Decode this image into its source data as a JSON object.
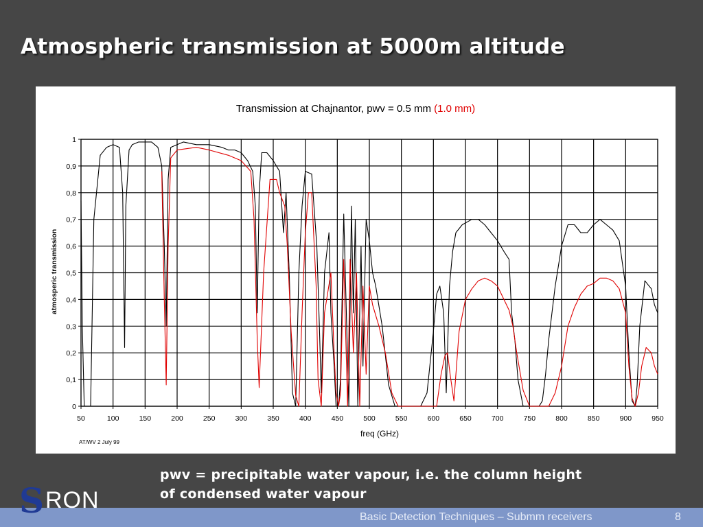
{
  "slide": {
    "title": "Atmospheric transmission at 5000m altitude",
    "caption_line1": "pwv = precipitable water vapour, i.e. the column height",
    "caption_line2": "of condensed water vapour",
    "footer_text": "Basic Detection Techniques – Submm receivers",
    "page_number": "8",
    "logo_text": "RON",
    "logo_letter": "S"
  },
  "chart_data": {
    "type": "line",
    "title": "Transmission at Chajnantor, pwv = 0.5 mm",
    "title_red": "(1.0 mm)",
    "xlabel": "freq (GHz)",
    "ylabel": "atmosperic transmission",
    "note": "AT/WV 2 July 99",
    "xlim": [
      50,
      950
    ],
    "ylim": [
      0,
      1
    ],
    "x_ticks": [
      50,
      100,
      150,
      200,
      250,
      300,
      350,
      400,
      450,
      500,
      550,
      600,
      650,
      700,
      750,
      800,
      850,
      900,
      950
    ],
    "y_ticks": [
      "0",
      "0,1",
      "0,2",
      "0,3",
      "0,4",
      "0,5",
      "0,6",
      "0,7",
      "0,8",
      "0,9",
      "1"
    ],
    "grid": true,
    "legend": "none",
    "colors": {
      "pwv_0_5": "#000000",
      "pwv_1_0": "#e00000"
    },
    "series": [
      {
        "color": "black",
        "x": [
          50,
          52,
          55,
          60,
          65,
          70,
          80,
          90,
          100,
          110,
          115,
          118,
          120,
          125,
          130,
          140,
          150,
          160,
          170,
          176,
          180,
          183,
          186,
          190,
          200,
          210,
          230,
          250,
          270,
          280,
          290,
          300,
          310,
          318,
          322,
          325,
          328,
          332,
          340,
          350,
          360,
          366,
          370,
          375,
          380,
          385,
          390,
          395,
          400,
          410,
          418,
          422,
          425,
          430,
          437,
          440,
          445,
          448,
          452,
          455,
          460,
          468,
          472,
          475,
          478,
          482,
          487,
          490,
          495,
          500,
          505,
          510,
          520,
          530,
          540,
          550,
          560,
          570,
          580,
          590,
          600,
          605,
          610,
          616,
          620,
          625,
          630,
          635,
          645,
          660,
          670,
          680,
          690,
          700,
          710,
          718,
          722,
          727,
          732,
          740,
          745,
          752,
          760,
          765,
          770,
          775,
          780,
          790,
          800,
          810,
          820,
          830,
          840,
          850,
          860,
          870,
          880,
          890,
          900,
          905,
          910,
          915,
          918,
          922,
          930,
          940,
          945,
          950
        ],
        "y": [
          0.77,
          0.3,
          0.0,
          0.0,
          0.0,
          0.7,
          0.94,
          0.97,
          0.98,
          0.97,
          0.8,
          0.22,
          0.75,
          0.96,
          0.98,
          0.99,
          0.99,
          0.99,
          0.97,
          0.9,
          0.6,
          0.3,
          0.85,
          0.97,
          0.98,
          0.99,
          0.98,
          0.98,
          0.97,
          0.96,
          0.96,
          0.95,
          0.92,
          0.88,
          0.75,
          0.35,
          0.8,
          0.95,
          0.95,
          0.92,
          0.88,
          0.65,
          0.8,
          0.5,
          0.05,
          0.0,
          0.5,
          0.75,
          0.88,
          0.87,
          0.6,
          0.3,
          0.05,
          0.5,
          0.65,
          0.35,
          0.15,
          0.0,
          0.0,
          0.1,
          0.72,
          0.0,
          0.75,
          0.35,
          0.7,
          0.0,
          0.6,
          0.15,
          0.7,
          0.62,
          0.5,
          0.45,
          0.3,
          0.08,
          0.0,
          0.0,
          0.0,
          0.0,
          0.0,
          0.05,
          0.28,
          0.42,
          0.45,
          0.35,
          0.05,
          0.45,
          0.58,
          0.65,
          0.68,
          0.7,
          0.7,
          0.68,
          0.65,
          0.62,
          0.58,
          0.55,
          0.35,
          0.25,
          0.1,
          0.0,
          0.0,
          0.0,
          0.0,
          0.0,
          0.02,
          0.12,
          0.25,
          0.45,
          0.6,
          0.68,
          0.68,
          0.65,
          0.65,
          0.68,
          0.7,
          0.68,
          0.66,
          0.62,
          0.45,
          0.2,
          0.02,
          0.0,
          0.08,
          0.3,
          0.47,
          0.44,
          0.38,
          0.35
        ]
      },
      {
        "color": "red",
        "x": [
          176,
          180,
          183,
          186,
          190,
          200,
          230,
          250,
          280,
          300,
          315,
          320,
          325,
          328,
          335,
          345,
          355,
          360,
          368,
          372,
          378,
          385,
          390,
          395,
          400,
          405,
          410,
          417,
          420,
          425,
          430,
          440,
          445,
          448,
          452,
          455,
          460,
          466,
          470,
          475,
          480,
          485,
          490,
          495,
          500,
          505,
          515,
          525,
          535,
          545,
          555,
          565,
          575,
          585,
          595,
          605,
          612,
          618,
          622,
          626,
          632,
          640,
          650,
          660,
          670,
          680,
          690,
          700,
          710,
          718,
          724,
          730,
          740,
          750,
          760,
          770,
          780,
          790,
          800,
          810,
          820,
          830,
          840,
          850,
          860,
          870,
          880,
          890,
          900,
          905,
          910,
          915,
          920,
          925,
          932,
          940,
          945,
          950
        ],
        "y": [
          0.88,
          0.4,
          0.08,
          0.6,
          0.93,
          0.96,
          0.97,
          0.96,
          0.94,
          0.92,
          0.88,
          0.7,
          0.25,
          0.07,
          0.5,
          0.85,
          0.85,
          0.8,
          0.75,
          0.6,
          0.28,
          0.04,
          0.0,
          0.35,
          0.65,
          0.8,
          0.8,
          0.45,
          0.1,
          0.0,
          0.35,
          0.5,
          0.2,
          0.05,
          0.0,
          0.05,
          0.55,
          0.0,
          0.55,
          0.2,
          0.5,
          0.0,
          0.45,
          0.12,
          0.45,
          0.38,
          0.3,
          0.2,
          0.05,
          0.0,
          0.0,
          0.0,
          0.0,
          0.0,
          0.0,
          0.0,
          0.12,
          0.19,
          0.2,
          0.12,
          0.02,
          0.28,
          0.4,
          0.44,
          0.47,
          0.48,
          0.47,
          0.45,
          0.4,
          0.36,
          0.3,
          0.2,
          0.06,
          0.0,
          0.0,
          0.0,
          0.0,
          0.05,
          0.15,
          0.3,
          0.37,
          0.42,
          0.45,
          0.46,
          0.48,
          0.48,
          0.47,
          0.44,
          0.35,
          0.15,
          0.03,
          0.0,
          0.05,
          0.15,
          0.22,
          0.2,
          0.15,
          0.12
        ]
      }
    ]
  }
}
